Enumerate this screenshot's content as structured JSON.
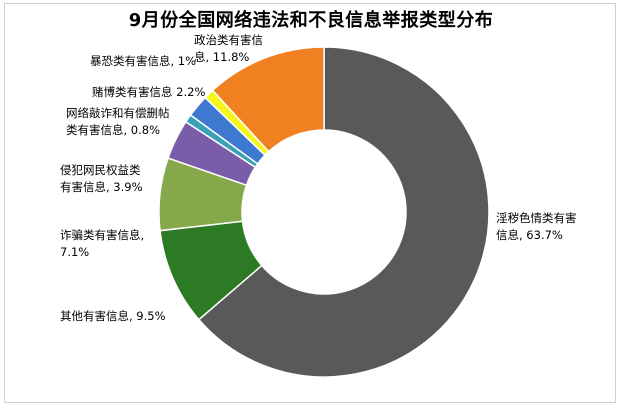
{
  "chart_data": {
    "type": "pie",
    "donut": true,
    "title": "9月份全国网络违法和不良信息举报类型分布",
    "start_category": "淫秽色情类有害信息",
    "direction": "clockwise",
    "slices": [
      {
        "category": "淫秽色情类有害信息",
        "value": 63.7,
        "color": "#595959",
        "label_lines": [
          "淫秽色情类有害",
          "信息, 63.7%"
        ]
      },
      {
        "category": "其他有害信息",
        "value": 9.5,
        "color": "#2d7a24",
        "label_lines": [
          "其他有害信息, 9.5%"
        ]
      },
      {
        "category": "诈骗类有害信息",
        "value": 7.1,
        "color": "#84a84a",
        "label_lines": [
          "诈骗类有害信息,",
          "7.1%"
        ]
      },
      {
        "category": "侵犯网民权益类有害信息",
        "value": 3.9,
        "color": "#7b5ca8",
        "label_lines": [
          "侵犯网民权益类",
          "有害信息, 3.9%"
        ]
      },
      {
        "category": "网络敲诈和有偿删帖类有害信息",
        "value": 0.8,
        "color": "#3aa0b8",
        "label_lines": [
          "网络敲诈和有偿删帖",
          "类有害信息, 0.8%"
        ]
      },
      {
        "category": "赌博类有害信息",
        "value": 2.2,
        "color": "#3f78d0",
        "label_lines": [
          "赌博类有害信息  2.2%"
        ]
      },
      {
        "category": "暴恐类有害信息",
        "value": 1.0,
        "color": "#f6f61c",
        "label_lines": [
          "暴恐类有害信息, 1%"
        ]
      },
      {
        "category": "政治类有害信息",
        "value": 11.8,
        "color": "#f08020",
        "label_lines": [
          "政治类有害信",
          "息, 11.8%"
        ]
      }
    ]
  }
}
